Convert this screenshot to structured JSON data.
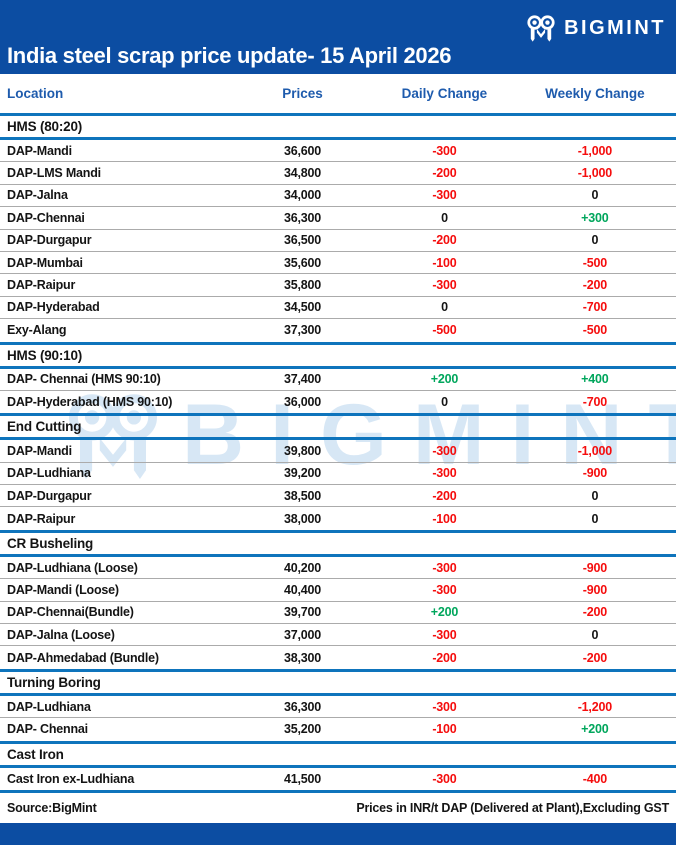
{
  "header": {
    "title": "India steel scrap price update- 15 April 2026",
    "brand": "BIGMINT"
  },
  "watermark": {
    "text": "BIGMINT"
  },
  "table": {
    "columns": [
      "Location",
      "Prices",
      "Daily Change",
      "Weekly Change"
    ],
    "sections": [
      {
        "name": "HMS (80:20)",
        "rows": [
          {
            "location": "DAP-Mandi",
            "price": "36,600",
            "daily": "-300",
            "weekly": "-1,000"
          },
          {
            "location": "DAP-LMS Mandi",
            "price": "34,800",
            "daily": "-200",
            "weekly": "-1,000"
          },
          {
            "location": "DAP-Jalna",
            "price": "34,000",
            "daily": "-300",
            "weekly": "0"
          },
          {
            "location": "DAP-Chennai",
            "price": "36,300",
            "daily": "0",
            "weekly": "+300"
          },
          {
            "location": "DAP-Durgapur",
            "price": "36,500",
            "daily": "-200",
            "weekly": "0"
          },
          {
            "location": "DAP-Mumbai",
            "price": "35,600",
            "daily": "-100",
            "weekly": "-500"
          },
          {
            "location": "DAP-Raipur",
            "price": "35,800",
            "daily": "-300",
            "weekly": "-200"
          },
          {
            "location": "DAP-Hyderabad",
            "price": "34,500",
            "daily": "0",
            "weekly": "-700"
          },
          {
            "location": "Exy-Alang",
            "price": "37,300",
            "daily": "-500",
            "weekly": "-500"
          }
        ]
      },
      {
        "name": "HMS (90:10)",
        "rows": [
          {
            "location": "DAP- Chennai  (HMS 90:10)",
            "price": "37,400",
            "daily": "+200",
            "weekly": "+400"
          },
          {
            "location": "DAP-Hyderabad (HMS 90:10)",
            "price": "36,000",
            "daily": "0",
            "weekly": "-700"
          }
        ]
      },
      {
        "name": "End Cutting",
        "rows": [
          {
            "location": "DAP-Mandi",
            "price": "39,800",
            "daily": "-300",
            "weekly": "-1,000"
          },
          {
            "location": "DAP-Ludhiana",
            "price": "39,200",
            "daily": "-300",
            "weekly": "-900"
          },
          {
            "location": "DAP-Durgapur",
            "price": "38,500",
            "daily": "-200",
            "weekly": "0"
          },
          {
            "location": "DAP-Raipur",
            "price": "38,000",
            "daily": "-100",
            "weekly": "0"
          }
        ]
      },
      {
        "name": "CR Busheling",
        "rows": [
          {
            "location": "DAP-Ludhiana (Loose)",
            "price": "40,200",
            "daily": "-300",
            "weekly": "-900"
          },
          {
            "location": "DAP-Mandi (Loose)",
            "price": "40,400",
            "daily": "-300",
            "weekly": "-900"
          },
          {
            "location": "DAP-Chennai(Bundle)",
            "price": "39,700",
            "daily": "+200",
            "weekly": "-200"
          },
          {
            "location": "DAP-Jalna (Loose)",
            "price": "37,000",
            "daily": "-300",
            "weekly": "0"
          },
          {
            "location": "DAP-Ahmedabad (Bundle)",
            "price": "38,300",
            "daily": "-200",
            "weekly": "-200"
          }
        ]
      },
      {
        "name": "Turning Boring",
        "rows": [
          {
            "location": "DAP-Ludhiana",
            "price": "36,300",
            "daily": "-300",
            "weekly": "-1,200"
          },
          {
            "location": "DAP- Chennai",
            "price": "35,200",
            "daily": "-100",
            "weekly": "+200"
          }
        ]
      },
      {
        "name": "Cast Iron",
        "rows": [
          {
            "location": "Cast Iron ex-Ludhiana",
            "price": "41,500",
            "daily": "-300",
            "weekly": "-400"
          }
        ]
      }
    ]
  },
  "footer": {
    "source": "Source:BigMint",
    "note": "Prices in INR/t DAP (Delivered at Plant),Excluding GST"
  },
  "colors": {
    "banner_blue": "#0c4da2",
    "section_line_blue": "#0e74bc",
    "header_text_blue": "#1e5bad",
    "negative_red": "#f50d0d",
    "positive_green": "#00a65c",
    "divider_gray": "#ababab"
  }
}
